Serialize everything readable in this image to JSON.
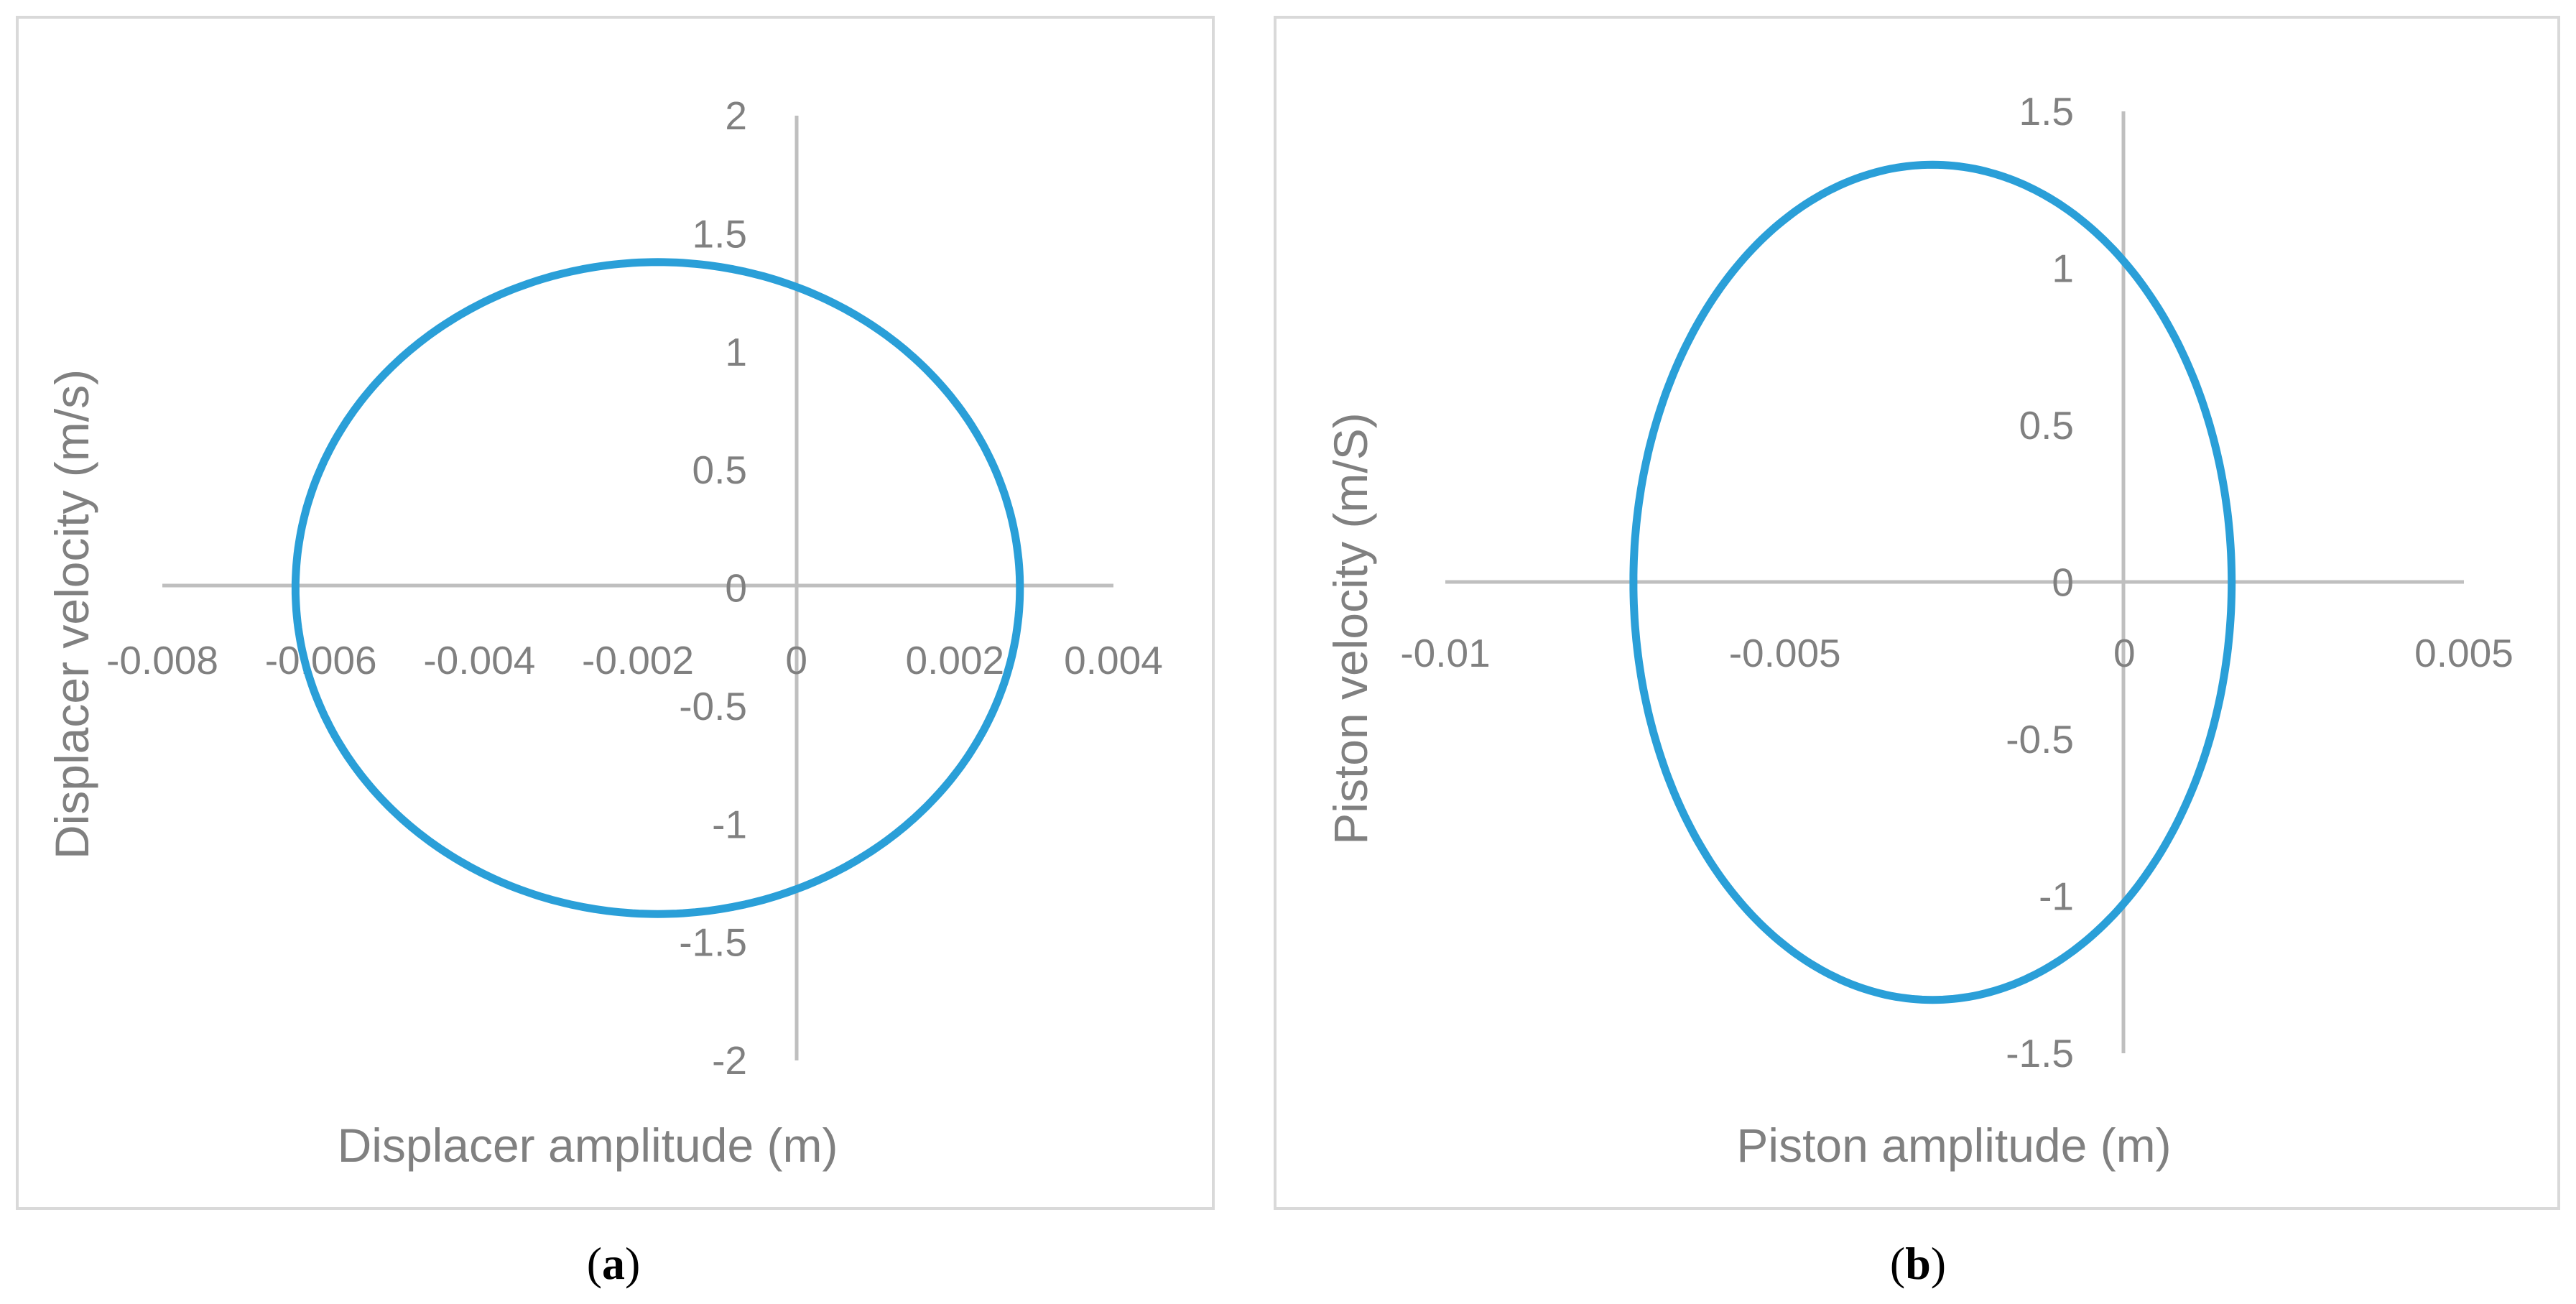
{
  "chart_data": [
    {
      "type": "line",
      "panel_label": "a",
      "xlabel": "Displacer amplitude (m)",
      "ylabel": "Displacer velocity (m/s)",
      "xlim": [
        -0.008,
        0.004
      ],
      "ylim": [
        -2,
        2
      ],
      "x_ticks": [
        "-0.008",
        "-0.006",
        "-0.004",
        "-0.002",
        "0",
        "0.002",
        "0.004"
      ],
      "y_ticks": [
        "2",
        "1.5",
        "1",
        "0.5",
        "0",
        "-0.5",
        "-1",
        "-1.5",
        "-2"
      ],
      "grid": false,
      "legend": "none",
      "series": [
        {
          "shape": "closed-orbit",
          "center": [
            -0.00175,
            0
          ],
          "x_extent": [
            -0.00632,
            0.00282
          ],
          "y_extent": [
            -1.38,
            1.38
          ],
          "color": "#2a9fd8"
        }
      ]
    },
    {
      "type": "line",
      "panel_label": "b",
      "xlabel": "Piston amplitude (m)",
      "ylabel": "Piston velocity (m/S)",
      "xlim": [
        -0.01,
        0.005
      ],
      "ylim": [
        -1.5,
        1.5
      ],
      "x_ticks": [
        "-0.01",
        "-0.005",
        "0",
        "0.005"
      ],
      "y_ticks": [
        "1.5",
        "1",
        "0.5",
        "0",
        "-0.5",
        "-1",
        "-1.5"
      ],
      "grid": false,
      "legend": "none",
      "series": [
        {
          "shape": "closed-orbit",
          "center": [
            -0.00285,
            0
          ],
          "x_extent": [
            -0.00723,
            0.00158
          ],
          "y_extent": [
            -1.33,
            1.33
          ],
          "color": "#2a9fd8"
        }
      ]
    }
  ]
}
